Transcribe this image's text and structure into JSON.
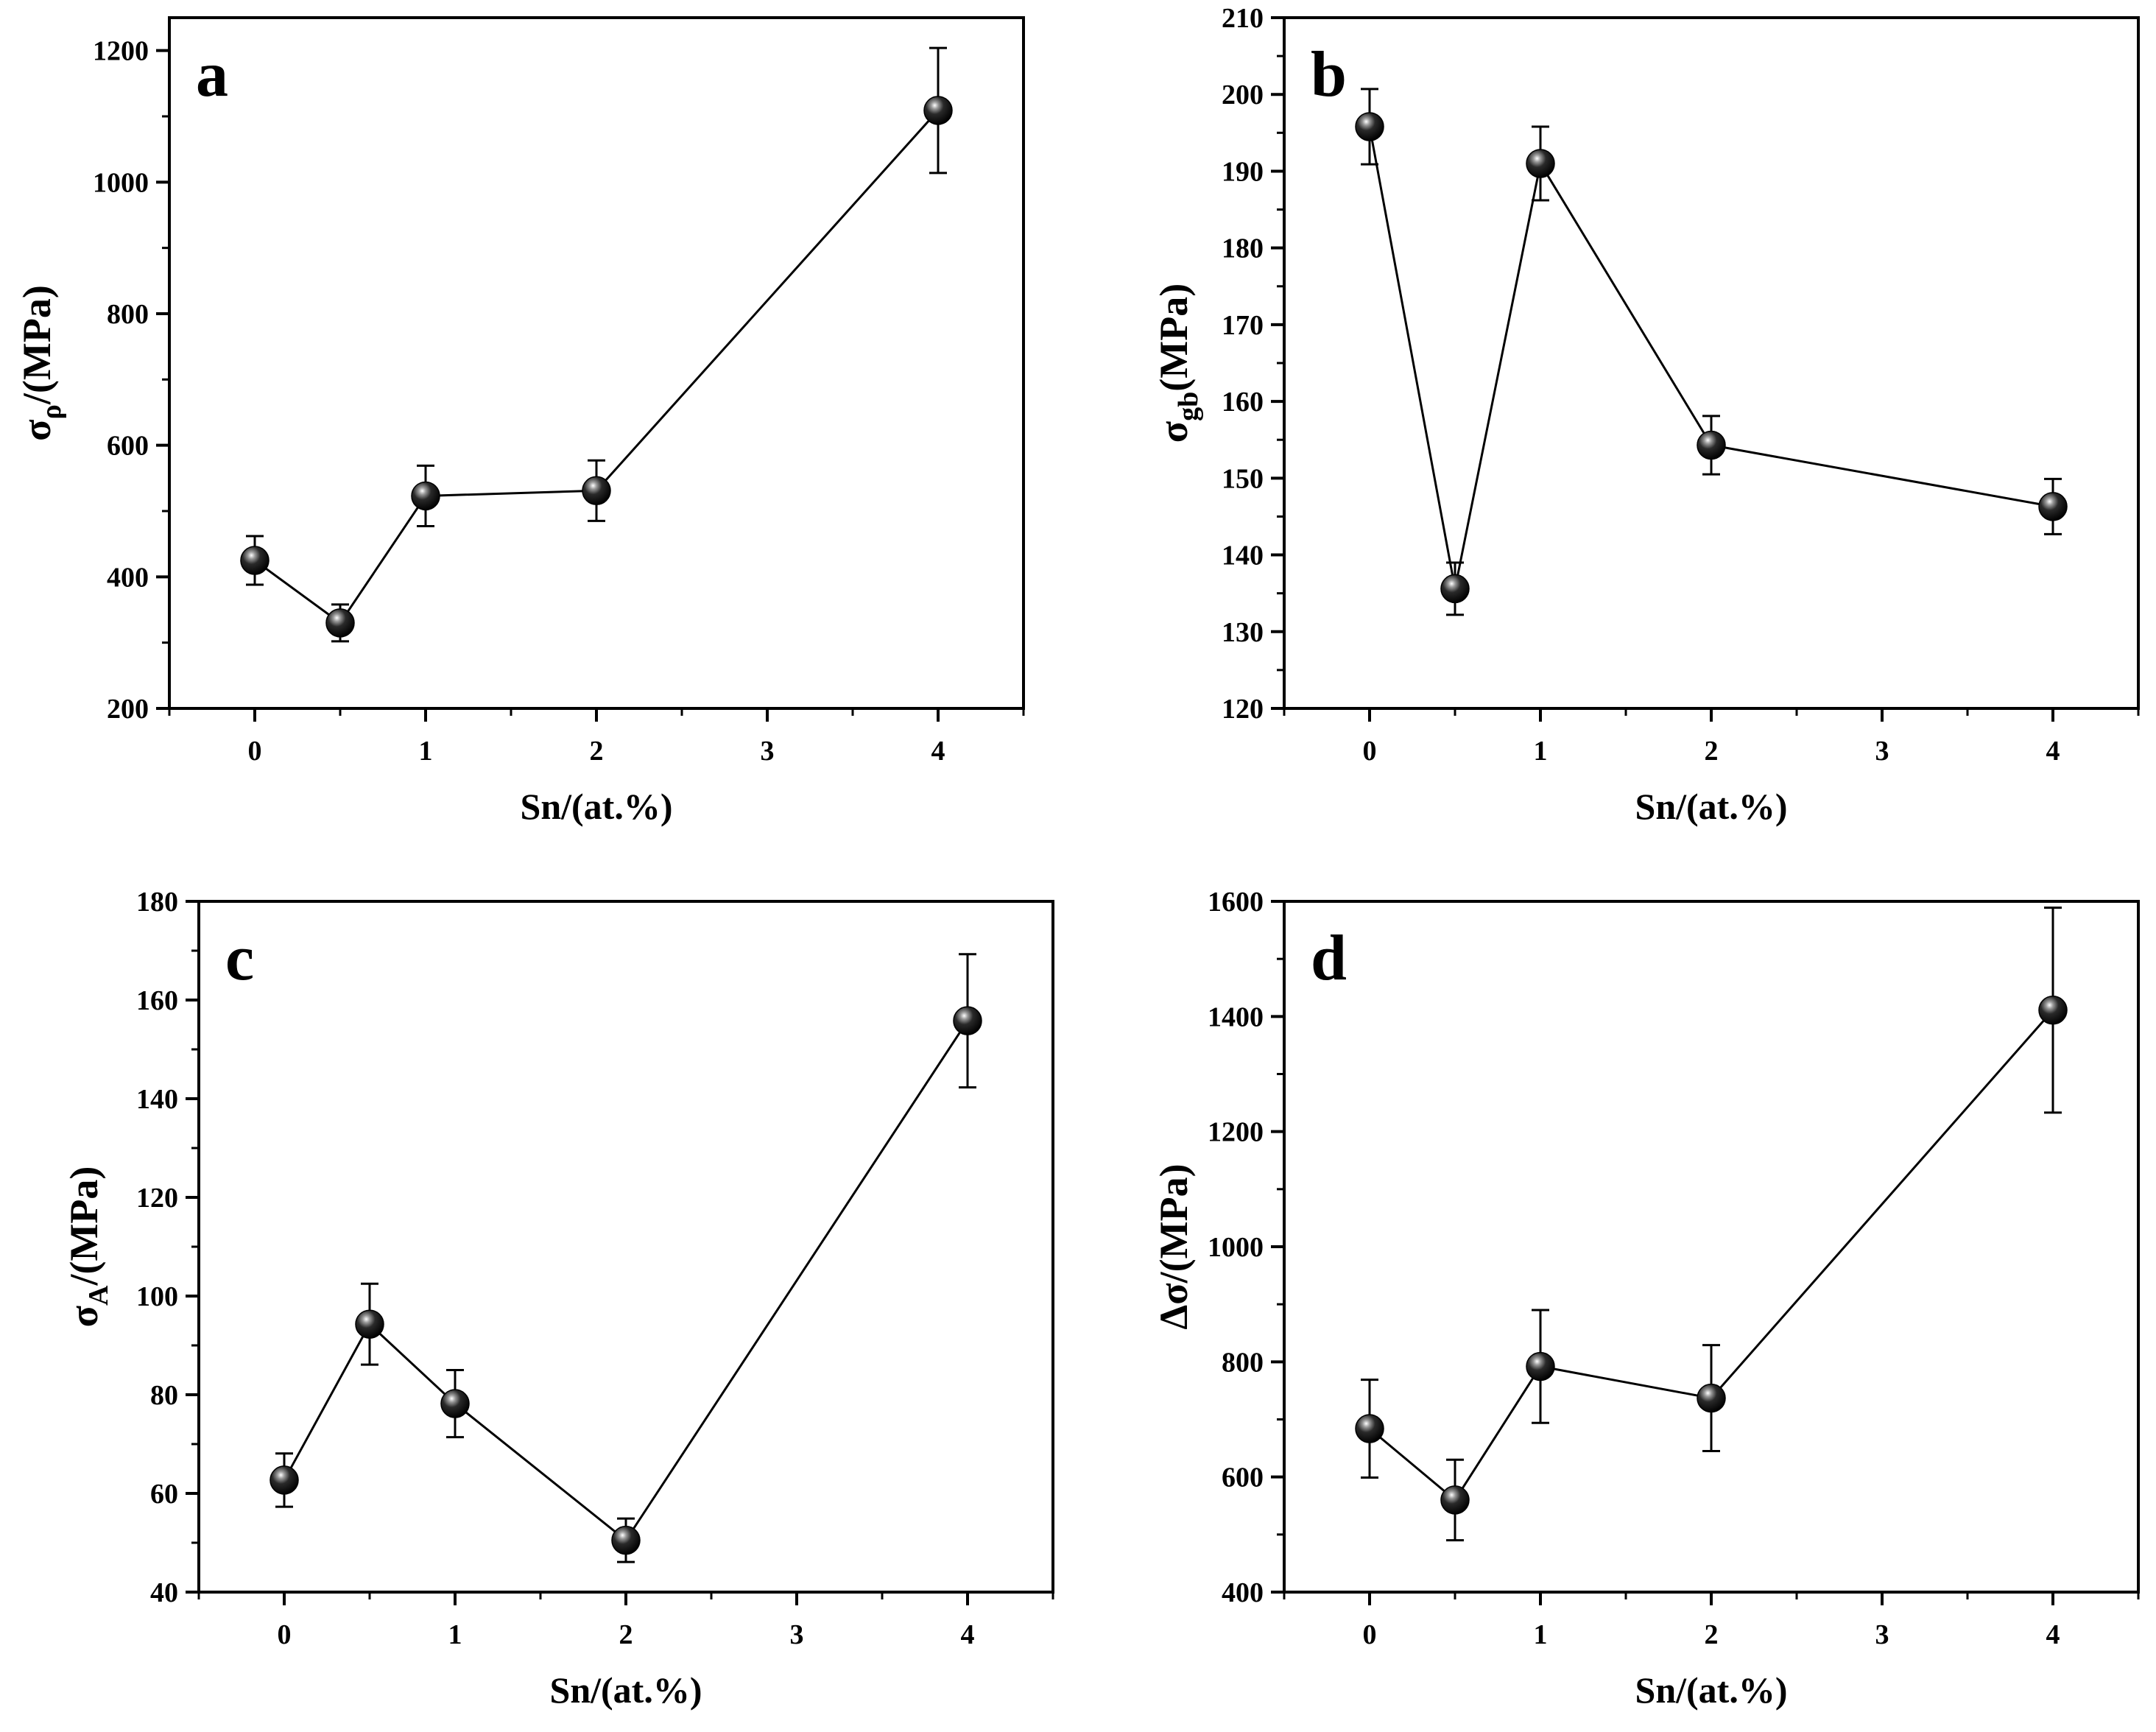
{
  "chart_data": [
    {
      "panel": "a",
      "type": "scatter",
      "mode": "line+markers",
      "xlabel": "Sn/(at.%)",
      "ylabel": {
        "main": "σ",
        "sub": "ρ",
        "rest": "/(MPa)"
      },
      "xlim": [
        -0.5,
        4.5
      ],
      "ylim": [
        200,
        1250
      ],
      "xticks": [
        0,
        1,
        2,
        3,
        4
      ],
      "yticks": [
        200,
        400,
        600,
        800,
        1000,
        1200
      ],
      "yminor": 100,
      "x": [
        0,
        0.5,
        1,
        2,
        4
      ],
      "y": [
        425,
        330,
        523,
        531,
        1109
      ],
      "err": [
        37,
        28,
        46,
        46,
        95
      ]
    },
    {
      "panel": "b",
      "type": "scatter",
      "mode": "line+markers",
      "xlabel": "Sn/(at.%)",
      "ylabel": {
        "main": "σ",
        "sub": "gb",
        "rest": "(MPa)"
      },
      "xlim": [
        -0.5,
        4.5
      ],
      "ylim": [
        120,
        210
      ],
      "xticks": [
        0,
        1,
        2,
        3,
        4
      ],
      "yticks": [
        120,
        130,
        140,
        150,
        160,
        170,
        180,
        190,
        200,
        210
      ],
      "yminor": 5,
      "x": [
        0,
        0.5,
        1,
        2,
        4
      ],
      "y": [
        195.8,
        135.6,
        191.0,
        154.3,
        146.3
      ],
      "err": [
        4.9,
        3.4,
        4.8,
        3.8,
        3.6
      ]
    },
    {
      "panel": "c",
      "type": "scatter",
      "mode": "line+markers",
      "xlabel": "Sn/(at.%)",
      "ylabel": {
        "main": "σ",
        "sub": "A",
        "rest": "/(MPa)"
      },
      "xlim": [
        -0.5,
        4.5
      ],
      "ylim": [
        40,
        180
      ],
      "xticks": [
        0,
        1,
        2,
        3,
        4
      ],
      "yticks": [
        40,
        60,
        80,
        100,
        120,
        140,
        160,
        180
      ],
      "yminor": 10,
      "x": [
        0,
        0.5,
        1,
        2,
        4
      ],
      "y": [
        62.7,
        94.3,
        78.2,
        50.5,
        155.8
      ],
      "err": [
        5.4,
        8.2,
        6.8,
        4.4,
        13.5
      ]
    },
    {
      "panel": "d",
      "type": "scatter",
      "mode": "line+markers",
      "xlabel": "Sn/(at.%)",
      "ylabel": {
        "main": "Δσ",
        "sub": "",
        "rest": "/(MPa)"
      },
      "xlim": [
        -0.5,
        4.5
      ],
      "ylim": [
        400,
        1600
      ],
      "xticks": [
        0,
        1,
        2,
        3,
        4
      ],
      "yticks": [
        400,
        600,
        800,
        1000,
        1200,
        1400,
        1600
      ],
      "yminor": 100,
      "x": [
        0,
        0.5,
        1,
        2,
        4
      ],
      "y": [
        684,
        560,
        792,
        737,
        1411
      ],
      "err": [
        85,
        70,
        98,
        92,
        178
      ]
    }
  ]
}
